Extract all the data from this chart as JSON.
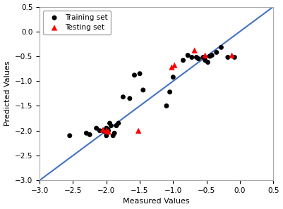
{
  "train_x": [
    -2.55,
    -2.3,
    -2.25,
    -2.15,
    -2.1,
    -2.05,
    -2.02,
    -2.0,
    -2.0,
    -1.98,
    -1.97,
    -1.95,
    -1.93,
    -1.9,
    -1.88,
    -1.85,
    -1.82,
    -1.75,
    -1.65,
    -1.58,
    -1.5,
    -1.45,
    -1.1,
    -1.05,
    -1.0,
    -0.85,
    -0.78,
    -0.72,
    -0.65,
    -0.62,
    -0.55,
    -0.52,
    -0.48,
    -0.45,
    -0.42,
    -0.35,
    -0.28,
    -0.18,
    -0.08
  ],
  "train_y": [
    -2.1,
    -2.05,
    -2.08,
    -1.95,
    -2.0,
    -2.0,
    -2.02,
    -2.1,
    -1.95,
    -1.98,
    -2.0,
    -1.85,
    -1.9,
    -2.1,
    -2.05,
    -1.9,
    -1.85,
    -1.32,
    -1.35,
    -0.88,
    -0.85,
    -1.18,
    -1.5,
    -1.22,
    -0.92,
    -0.58,
    -0.48,
    -0.52,
    -0.52,
    -0.55,
    -0.52,
    -0.58,
    -0.62,
    -0.5,
    -0.48,
    -0.42,
    -0.32,
    -0.52,
    -0.52
  ],
  "test_x": [
    -2.05,
    -2.0,
    -1.97,
    -1.52,
    -1.02,
    -0.98,
    -0.68,
    -0.52,
    -0.12
  ],
  "test_y": [
    -1.98,
    -2.0,
    -2.02,
    -2.0,
    -0.72,
    -0.68,
    -0.38,
    -0.48,
    -0.48
  ],
  "xlim": [
    -3.0,
    0.5
  ],
  "ylim": [
    -3.0,
    0.5
  ],
  "xticks": [
    -3.0,
    -2.5,
    -2.0,
    -1.5,
    -1.0,
    -0.5,
    0.0,
    0.5
  ],
  "yticks": [
    -3.0,
    -2.5,
    -2.0,
    -1.5,
    -1.0,
    -0.5,
    0.0,
    0.5
  ],
  "xlabel": "Measured Values",
  "ylabel": "Predicted Values",
  "diag_line_color": "#4472C4",
  "train_color": "black",
  "test_color": "red",
  "bg_color": "#ffffff",
  "legend_loc": "upper left",
  "train_label": "Training set",
  "test_label": "Testing set",
  "train_marker": "o",
  "test_marker": "^",
  "train_markersize": 5,
  "test_markersize": 6,
  "figsize": [
    4.01,
    2.97
  ],
  "dpi": 100
}
